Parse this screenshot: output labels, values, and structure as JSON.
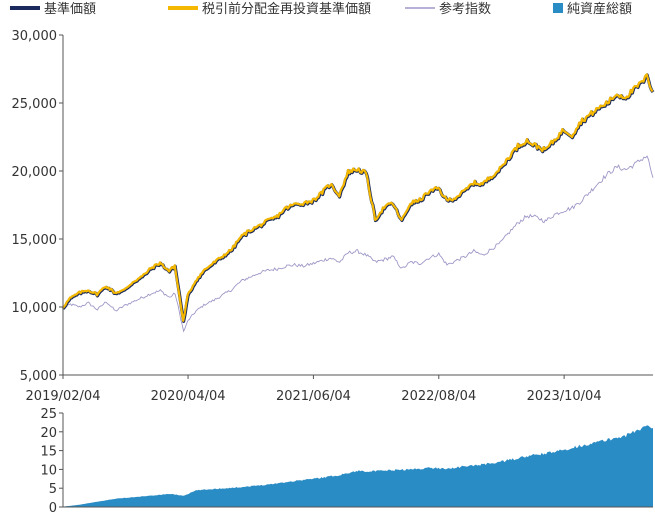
{
  "legend": [
    {
      "label": "基準価額",
      "color": "#1a2a5e",
      "kind": "line"
    },
    {
      "label": "税引前分配金再投資基準価額",
      "color": "#f5b800",
      "kind": "line"
    },
    {
      "label": "参考指数",
      "color": "#9e98c8",
      "kind": "line"
    },
    {
      "label": "純資産総額",
      "color": "#2a8cc4",
      "kind": "square"
    }
  ],
  "chart_data": [
    {
      "type": "line",
      "title": "",
      "xlabel": "",
      "ylabel": "",
      "x_ticks": [
        "2019/02/04",
        "2020/04/04",
        "2021/06/04",
        "2022/08/04",
        "2023/10/04"
      ],
      "x_range": [
        "2019/02/04",
        "2024/08/01"
      ],
      "y_ticks": [
        "30,000",
        "25,000",
        "20,000",
        "15,000",
        "10,000",
        "5,000"
      ],
      "ylim": [
        5000,
        30000
      ],
      "grid": false,
      "legend_position": "top",
      "series": [
        {
          "name": "基準価額",
          "color": "#1a2a5e",
          "x": [
            "2019-02-04",
            "2019-03-01",
            "2019-04-01",
            "2019-05-01",
            "2019-06-01",
            "2019-07-01",
            "2019-08-01",
            "2019-09-01",
            "2019-10-01",
            "2019-11-01",
            "2019-12-01",
            "2020-01-01",
            "2020-02-01",
            "2020-02-20",
            "2020-03-20",
            "2020-04-04",
            "2020-05-01",
            "2020-06-01",
            "2020-07-01",
            "2020-08-01",
            "2020-09-01",
            "2020-10-01",
            "2020-11-01",
            "2020-12-01",
            "2021-01-01",
            "2021-02-01",
            "2021-03-01",
            "2021-04-01",
            "2021-05-01",
            "2021-06-04",
            "2021-07-01",
            "2021-08-01",
            "2021-09-01",
            "2021-10-01",
            "2021-11-01",
            "2021-12-01",
            "2022-01-01",
            "2022-02-01",
            "2022-03-01",
            "2022-04-01",
            "2022-05-01",
            "2022-06-01",
            "2022-07-01",
            "2022-08-04",
            "2022-09-01",
            "2022-10-01",
            "2022-11-01",
            "2022-12-01",
            "2023-01-01",
            "2023-02-01",
            "2023-03-01",
            "2023-04-01",
            "2023-05-01",
            "2023-06-01",
            "2023-07-01",
            "2023-08-01",
            "2023-09-01",
            "2023-10-04",
            "2023-11-01",
            "2023-12-01",
            "2024-01-01",
            "2024-02-01",
            "2024-03-01",
            "2024-04-01",
            "2024-05-01",
            "2024-06-01",
            "2024-07-01",
            "2024-07-12",
            "2024-08-01"
          ],
          "values": [
            9900,
            10600,
            11000,
            11200,
            10900,
            11500,
            11000,
            11200,
            11800,
            12200,
            12800,
            13200,
            12600,
            13000,
            8900,
            10800,
            11900,
            12700,
            13200,
            13700,
            14200,
            15100,
            15600,
            15900,
            16300,
            16600,
            17200,
            17500,
            17600,
            17800,
            18300,
            19000,
            18200,
            19900,
            20100,
            19800,
            16400,
            17300,
            17600,
            16300,
            17600,
            17800,
            18400,
            18700,
            17800,
            18000,
            18500,
            19100,
            19000,
            19600,
            20100,
            21000,
            21800,
            22200,
            21800,
            21500,
            22200,
            23000,
            22600,
            23600,
            24100,
            24600,
            25000,
            25600,
            25400,
            26000,
            26600,
            26900,
            25800
          ]
        },
        {
          "name": "税引前分配金再投資基準価額",
          "color": "#f5b800",
          "x": [
            "2019-02-04",
            "2019-03-01",
            "2019-04-01",
            "2019-05-01",
            "2019-06-01",
            "2019-07-01",
            "2019-08-01",
            "2019-09-01",
            "2019-10-01",
            "2019-11-01",
            "2019-12-01",
            "2020-01-01",
            "2020-02-01",
            "2020-02-20",
            "2020-03-20",
            "2020-04-04",
            "2020-05-01",
            "2020-06-01",
            "2020-07-01",
            "2020-08-01",
            "2020-09-01",
            "2020-10-01",
            "2020-11-01",
            "2020-12-01",
            "2021-01-01",
            "2021-02-01",
            "2021-03-01",
            "2021-04-01",
            "2021-05-01",
            "2021-06-04",
            "2021-07-01",
            "2021-08-01",
            "2021-09-01",
            "2021-10-01",
            "2021-11-01",
            "2021-12-01",
            "2022-01-01",
            "2022-02-01",
            "2022-03-01",
            "2022-04-01",
            "2022-05-01",
            "2022-06-01",
            "2022-07-01",
            "2022-08-04",
            "2022-09-01",
            "2022-10-01",
            "2022-11-01",
            "2022-12-01",
            "2023-01-01",
            "2023-02-01",
            "2023-03-01",
            "2023-04-01",
            "2023-05-01",
            "2023-06-01",
            "2023-07-01",
            "2023-08-01",
            "2023-09-01",
            "2023-10-04",
            "2023-11-01",
            "2023-12-01",
            "2024-01-01",
            "2024-02-01",
            "2024-03-01",
            "2024-04-01",
            "2024-05-01",
            "2024-06-01",
            "2024-07-01",
            "2024-07-12",
            "2024-08-01"
          ],
          "values": [
            9900,
            10600,
            11000,
            11200,
            10900,
            11500,
            11000,
            11200,
            11800,
            12200,
            12800,
            13200,
            12600,
            13000,
            8900,
            10800,
            11900,
            12700,
            13200,
            13700,
            14200,
            15100,
            15600,
            15900,
            16300,
            16600,
            17200,
            17500,
            17600,
            17800,
            18300,
            19000,
            18200,
            19900,
            20100,
            19800,
            16400,
            17300,
            17600,
            16300,
            17600,
            17800,
            18400,
            18700,
            17800,
            18000,
            18500,
            19100,
            19000,
            19600,
            20100,
            21000,
            21800,
            22200,
            21800,
            21500,
            22200,
            23000,
            22600,
            23600,
            24100,
            24600,
            25000,
            25600,
            25400,
            26000,
            26600,
            26900,
            25800
          ]
        },
        {
          "name": "参考指数",
          "color": "#9e98c8",
          "x": [
            "2019-02-04",
            "2019-03-01",
            "2019-04-01",
            "2019-05-01",
            "2019-06-01",
            "2019-07-01",
            "2019-08-01",
            "2019-09-01",
            "2019-10-01",
            "2019-11-01",
            "2019-12-01",
            "2020-01-01",
            "2020-02-01",
            "2020-02-20",
            "2020-03-20",
            "2020-04-04",
            "2020-05-01",
            "2020-06-01",
            "2020-07-01",
            "2020-08-01",
            "2020-09-01",
            "2020-10-01",
            "2020-11-01",
            "2020-12-01",
            "2021-01-01",
            "2021-02-01",
            "2021-03-01",
            "2021-04-01",
            "2021-05-01",
            "2021-06-04",
            "2021-07-01",
            "2021-08-01",
            "2021-09-01",
            "2021-10-01",
            "2021-11-01",
            "2021-12-01",
            "2022-01-01",
            "2022-02-01",
            "2022-03-01",
            "2022-04-01",
            "2022-05-01",
            "2022-06-01",
            "2022-07-01",
            "2022-08-04",
            "2022-09-01",
            "2022-10-01",
            "2022-11-01",
            "2022-12-01",
            "2023-01-01",
            "2023-02-01",
            "2023-03-01",
            "2023-04-01",
            "2023-05-01",
            "2023-06-01",
            "2023-07-01",
            "2023-08-01",
            "2023-09-01",
            "2023-10-04",
            "2023-11-01",
            "2023-12-01",
            "2024-01-01",
            "2024-02-01",
            "2024-03-01",
            "2024-04-01",
            "2024-05-01",
            "2024-06-01",
            "2024-07-01",
            "2024-07-12",
            "2024-08-01"
          ],
          "values": [
            9900,
            10200,
            10000,
            10300,
            9800,
            10400,
            9700,
            10100,
            10400,
            10700,
            11000,
            11200,
            10700,
            11000,
            8200,
            9000,
            9700,
            10200,
            10500,
            10900,
            11300,
            11900,
            12200,
            12500,
            12700,
            12800,
            13000,
            13100,
            13000,
            13200,
            13400,
            13600,
            13300,
            14000,
            14100,
            13800,
            13300,
            13500,
            13700,
            12800,
            13300,
            13200,
            13600,
            13900,
            13100,
            13400,
            13700,
            14100,
            13800,
            14300,
            14700,
            15500,
            16200,
            16700,
            16600,
            16300,
            16800,
            17100,
            17300,
            17800,
            18500,
            19200,
            19800,
            20300,
            20100,
            20500,
            21000,
            21100,
            19500
          ]
        }
      ]
    },
    {
      "type": "area",
      "title": "",
      "xlabel": "",
      "ylabel": "",
      "y_ticks": [
        "25",
        "20",
        "15",
        "10",
        "5",
        "0"
      ],
      "ylim": [
        0,
        25
      ],
      "grid": false,
      "series": [
        {
          "name": "純資産総額",
          "color": "#2a8cc4",
          "x": [
            "2019-02-04",
            "2019-04-01",
            "2019-06-01",
            "2019-08-01",
            "2019-10-01",
            "2019-12-01",
            "2020-02-01",
            "2020-03-20",
            "2020-05-01",
            "2020-07-01",
            "2020-09-01",
            "2020-11-01",
            "2021-01-01",
            "2021-03-01",
            "2021-05-01",
            "2021-07-01",
            "2021-09-01",
            "2021-11-01",
            "2022-01-01",
            "2022-03-01",
            "2022-05-01",
            "2022-07-01",
            "2022-09-01",
            "2022-11-01",
            "2023-01-01",
            "2023-03-01",
            "2023-05-01",
            "2023-07-01",
            "2023-09-01",
            "2023-11-01",
            "2024-01-01",
            "2024-03-01",
            "2024-05-01",
            "2024-07-12",
            "2024-08-01"
          ],
          "values": [
            0.1,
            0.6,
            1.4,
            2.2,
            2.6,
            3.0,
            3.5,
            3.0,
            4.4,
            4.8,
            5.1,
            5.5,
            6.0,
            6.6,
            7.2,
            7.8,
            8.5,
            9.6,
            9.5,
            9.8,
            10.0,
            10.4,
            10.2,
            10.8,
            11.3,
            12.0,
            13.0,
            13.9,
            14.6,
            15.8,
            16.8,
            17.9,
            19.0,
            21.6,
            21.0
          ]
        }
      ]
    }
  ]
}
